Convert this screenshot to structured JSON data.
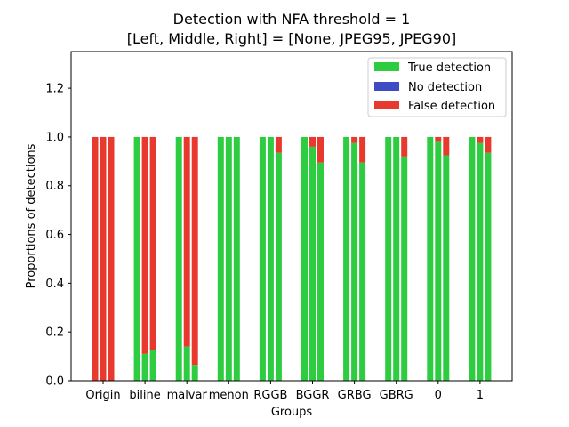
{
  "chart_data": {
    "type": "bar",
    "stacked": true,
    "title_lines": [
      "Detection with NFA threshold = 1",
      "[Left, Middle, Right] = [None, JPEG95, JPEG90]"
    ],
    "xlabel": "Groups",
    "ylabel": "Proportions of detections",
    "ylim": [
      0,
      1.35
    ],
    "yticks": [
      0.0,
      0.2,
      0.4,
      0.6,
      0.8,
      1.0,
      1.2
    ],
    "ytick_labels": [
      "0.0",
      "0.2",
      "0.4",
      "0.6",
      "0.8",
      "1.0",
      "1.2"
    ],
    "categories": [
      "Origin",
      "biline",
      "malvar",
      "menon",
      "RGGB",
      "BGGR",
      "GRBG",
      "GBRG",
      "0",
      "1"
    ],
    "sub_bars": [
      "None",
      "JPEG95",
      "JPEG90"
    ],
    "legend": {
      "position": "top-right"
    },
    "colors": {
      "True detection": "#2ecc40",
      "No detection": "#3e4bc4",
      "False detection": "#e8392e"
    },
    "series": [
      {
        "name": "True detection",
        "values": [
          [
            0.0,
            0.0,
            0.0
          ],
          [
            1.0,
            0.11,
            0.125
          ],
          [
            1.0,
            0.14,
            0.065
          ],
          [
            1.0,
            1.0,
            1.0
          ],
          [
            1.0,
            1.0,
            0.935
          ],
          [
            1.0,
            0.96,
            0.895
          ],
          [
            1.0,
            0.975,
            0.895
          ],
          [
            1.0,
            1.0,
            0.92
          ],
          [
            1.0,
            0.98,
            0.925
          ],
          [
            1.0,
            0.975,
            0.935
          ]
        ]
      },
      {
        "name": "No detection",
        "values": [
          [
            0,
            0,
            0
          ],
          [
            0,
            0,
            0
          ],
          [
            0,
            0,
            0
          ],
          [
            0,
            0,
            0
          ],
          [
            0,
            0,
            0
          ],
          [
            0,
            0,
            0
          ],
          [
            0,
            0,
            0
          ],
          [
            0,
            0,
            0
          ],
          [
            0,
            0,
            0
          ],
          [
            0,
            0,
            0
          ]
        ]
      },
      {
        "name": "False detection",
        "values": [
          [
            1.0,
            1.0,
            1.0
          ],
          [
            0.0,
            0.89,
            0.875
          ],
          [
            0.0,
            0.86,
            0.935
          ],
          [
            0.0,
            0.0,
            0.0
          ],
          [
            0.0,
            0.0,
            0.065
          ],
          [
            0.0,
            0.04,
            0.105
          ],
          [
            0.0,
            0.025,
            0.105
          ],
          [
            0.0,
            0.0,
            0.08
          ],
          [
            0.0,
            0.02,
            0.075
          ],
          [
            0.0,
            0.025,
            0.065
          ]
        ]
      }
    ]
  }
}
